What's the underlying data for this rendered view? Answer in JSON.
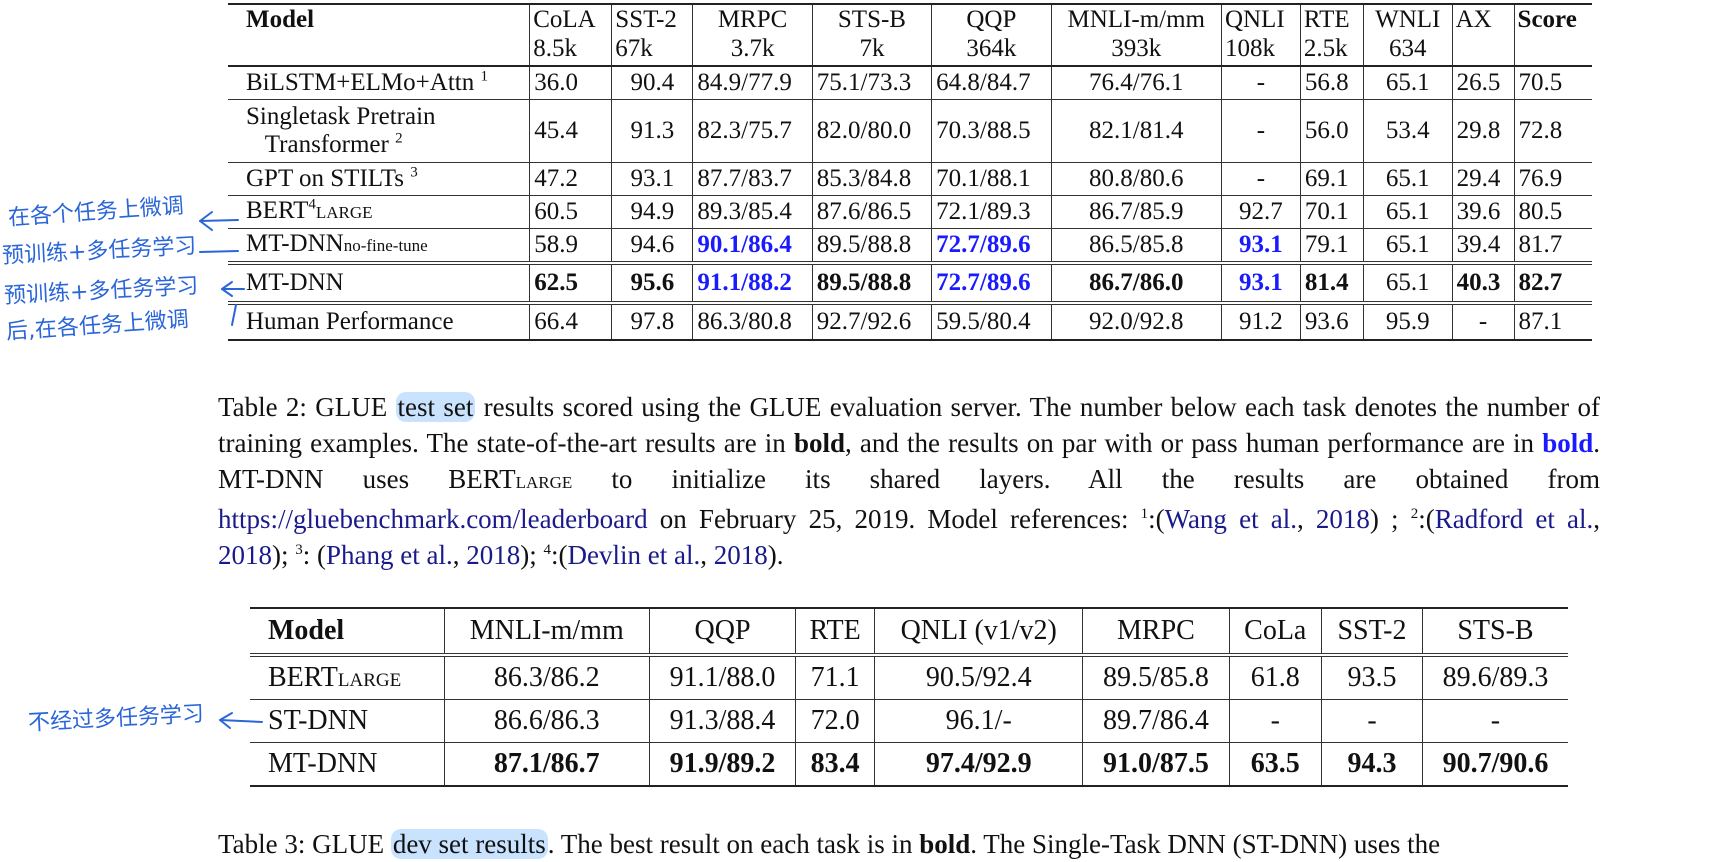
{
  "table2": {
    "header": [
      {
        "name": "Model",
        "size": ""
      },
      {
        "name": "CoLA",
        "size": "8.5k"
      },
      {
        "name": "SST-2",
        "size": "67k"
      },
      {
        "name": "MRPC",
        "size": "3.7k"
      },
      {
        "name": "STS-B",
        "size": "7k"
      },
      {
        "name": "QQP",
        "size": "364k"
      },
      {
        "name": "MNLI-m/mm",
        "size": "393k"
      },
      {
        "name": "QNLI",
        "size": "108k"
      },
      {
        "name": "RTE",
        "size": "2.5k"
      },
      {
        "name": "WNLI",
        "size": "634"
      },
      {
        "name": "AX",
        "size": ""
      },
      {
        "name": "Score",
        "size": ""
      }
    ],
    "rows": [
      {
        "model": "BiLSTM+ELMo+Attn",
        "ref": "1",
        "cells": [
          "36.0",
          "90.4",
          "84.9/77.9",
          "75.1/73.3",
          "64.8/84.7",
          "76.4/76.1",
          "-",
          "56.8",
          "65.1",
          "26.5",
          "70.5"
        ]
      },
      {
        "model_line1": "Singletask Pretrain",
        "model_line2": "Transformer",
        "ref": "2",
        "cells": [
          "45.4",
          "91.3",
          "82.3/75.7",
          "82.0/80.0",
          "70.3/88.5",
          "82.1/81.4",
          "-",
          "56.0",
          "53.4",
          "29.8",
          "72.8"
        ]
      },
      {
        "model": "GPT on STILTs",
        "ref": "3",
        "cells": [
          "47.2",
          "93.1",
          "87.7/83.7",
          "85.3/84.8",
          "70.1/88.1",
          "80.8/80.6",
          "-",
          "69.1",
          "65.1",
          "29.4",
          "76.9"
        ]
      },
      {
        "model": "BERT",
        "ref": "4",
        "subscript": "LARGE",
        "cells": [
          "60.5",
          "94.9",
          "89.3/85.4",
          "87.6/86.5",
          "72.1/89.3",
          "86.7/85.9",
          "92.7",
          "70.1",
          "65.1",
          "39.6",
          "80.5"
        ]
      },
      {
        "model": "MT-DNN",
        "subscript": "no-fine-tune",
        "cells": [
          "58.9",
          "94.6",
          "90.1/86.4",
          "89.5/88.8",
          "72.7/89.6",
          "86.5/85.8",
          "93.1",
          "79.1",
          "65.1",
          "39.4",
          "81.7"
        ]
      },
      {
        "model": "MT-DNN",
        "cells": [
          "62.5",
          "95.6",
          "91.1/88.2",
          "89.5/88.8",
          "72.7/89.6",
          "86.7/86.0",
          "93.1",
          "81.4",
          "65.1",
          "40.3",
          "82.7"
        ]
      },
      {
        "model": "Human Performance",
        "cells": [
          "66.4",
          "97.8",
          "86.3/80.8",
          "92.7/92.6",
          "59.5/80.4",
          "92.0/92.8",
          "91.2",
          "93.6",
          "95.9",
          "-",
          "87.1"
        ]
      }
    ]
  },
  "caption2": {
    "p1": "Table 2: GLUE ",
    "hl": "test set",
    "p2": " results scored using the GLUE evaluation server. The number below each task denotes the number of training examples.  The state-of-the-art results are in ",
    "bold1": "bold",
    "p3": ", and the results on par with or pass human performance are in ",
    "bold2": "bold",
    "p4": ".  MT-DNN uses BERT",
    "sub": "LARGE",
    "p5": " to initialize its shared layers.  All the results are obtained from ",
    "url": "https://gluebenchmark.com/leaderboard",
    "p6": " on February 25, 2019.  Model references:  ",
    "r1": "1",
    "c1": ":(",
    "ref1a": "Wang et al.",
    "comma1": ", ",
    "ref1b": "2018",
    "end1": ") ; ",
    "r2": "2",
    "c2": ":(",
    "ref2a": "Radford et al.",
    "comma2": ", ",
    "ref2b": "2018",
    "end2": "); ",
    "r3": "3",
    "c3": ": (",
    "ref3a": "Phang et al.",
    "comma3": ", ",
    "ref3b": "2018",
    "end3": "); ",
    "r4": "4",
    "c4": ":(",
    "ref4a": "Devlin et al.",
    "comma4": ", ",
    "ref4b": "2018",
    "end4": ")."
  },
  "table3": {
    "header": [
      "Model",
      "MNLI-m/mm",
      "QQP",
      "RTE",
      "QNLI (v1/v2)",
      "MRPC",
      "CoLa",
      "SST-2",
      "STS-B"
    ],
    "rows": [
      {
        "model": "BERT",
        "subscript": "LARGE",
        "cells": [
          "86.3/86.2",
          "91.1/88.0",
          "71.1",
          "90.5/92.4",
          "89.5/85.8",
          "61.8",
          "93.5",
          "89.6/89.3"
        ]
      },
      {
        "model": "ST-DNN",
        "cells": [
          "86.6/86.3",
          "91.3/88.4",
          "72.0",
          "96.1/-",
          "89.7/86.4",
          "-",
          "-",
          "-"
        ]
      },
      {
        "model": "MT-DNN",
        "cells": [
          "87.1/86.7",
          "91.9/89.2",
          "83.4",
          "97.4/92.9",
          "91.0/87.5",
          "63.5",
          "94.3",
          "90.7/90.6"
        ]
      }
    ]
  },
  "caption3": {
    "p1": "Table 3: GLUE ",
    "hl": "dev set results",
    "p2": ". The best result on each task is in ",
    "bold": "bold",
    "p3": ". The Single-Task DNN (ST-DNN) uses the"
  },
  "annotations": {
    "a1": "在各个任务上微调",
    "a2": "预训练+多任务学习",
    "a3": "预训练+多任务学习",
    "a4": "后,在各任务上微调",
    "a5": "不经过多任务学习"
  },
  "colors": {
    "highlight": "#c9e3ff",
    "bold_blue": "#1a1aff",
    "link": "#1a1a8c",
    "handwriting": "#2b66d9"
  }
}
